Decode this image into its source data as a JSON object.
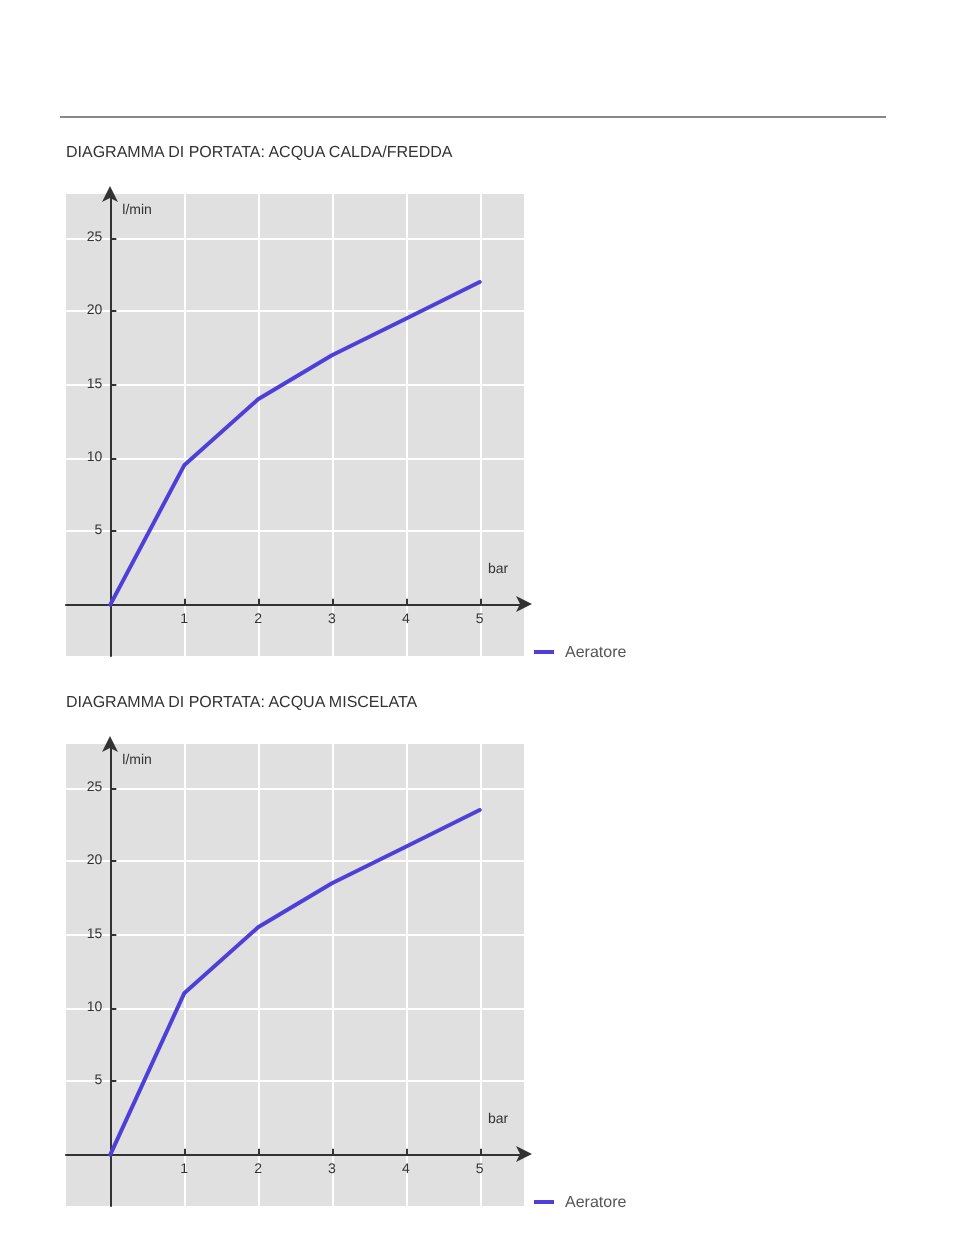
{
  "chart_data": [
    {
      "type": "line",
      "title": "DIAGRAMMA DI PORTATA: ACQUA CALDA/FREDDA",
      "xlabel": "bar",
      "ylabel": "l/min",
      "x": [
        0,
        1,
        2,
        3,
        4,
        5
      ],
      "series": [
        {
          "name": "Aeratore",
          "color": "#4f3fd8",
          "values": [
            0,
            9.5,
            14,
            17,
            19.5,
            22
          ]
        }
      ],
      "xlim": [
        -0.6,
        5.6
      ],
      "ylim": [
        -3.5,
        28
      ],
      "xticks": [
        1,
        2,
        3,
        4,
        5
      ],
      "yticks": [
        5,
        10,
        15,
        20,
        25
      ],
      "grid": true,
      "legend": "bottom right",
      "marker": "none"
    },
    {
      "type": "line",
      "title": "DIAGRAMMA DI PORTATA: ACQUA MISCELATA",
      "xlabel": "bar",
      "ylabel": "l/min",
      "x": [
        0,
        1,
        2,
        3,
        4,
        5
      ],
      "series": [
        {
          "name": "Aeratore",
          "color": "#4f3fd8",
          "values": [
            0,
            11,
            15.5,
            18.5,
            21,
            23.5
          ]
        }
      ],
      "xlim": [
        -0.6,
        5.6
      ],
      "ylim": [
        -3.5,
        28
      ],
      "xticks": [
        1,
        2,
        3,
        4,
        5
      ],
      "yticks": [
        5,
        10,
        15,
        20,
        25
      ],
      "grid": true,
      "legend": "bottom right",
      "marker": "none"
    }
  ]
}
